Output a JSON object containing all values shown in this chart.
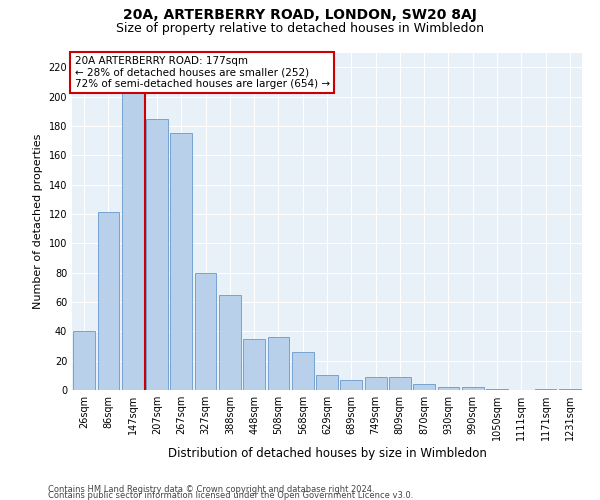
{
  "title": "20A, ARTERBERRY ROAD, LONDON, SW20 8AJ",
  "subtitle": "Size of property relative to detached houses in Wimbledon",
  "xlabel": "Distribution of detached houses by size in Wimbledon",
  "ylabel": "Number of detached properties",
  "categories": [
    "26sqm",
    "86sqm",
    "147sqm",
    "207sqm",
    "267sqm",
    "327sqm",
    "388sqm",
    "448sqm",
    "508sqm",
    "568sqm",
    "629sqm",
    "689sqm",
    "749sqm",
    "809sqm",
    "870sqm",
    "930sqm",
    "990sqm",
    "1050sqm",
    "1111sqm",
    "1171sqm",
    "1231sqm"
  ],
  "values": [
    40,
    121,
    210,
    185,
    175,
    80,
    65,
    35,
    36,
    26,
    10,
    7,
    9,
    9,
    4,
    2,
    2,
    1,
    0,
    1,
    1
  ],
  "bar_color": "#b8d0ea",
  "bar_edge_color": "#6699cc",
  "vline_color": "#cc0000",
  "vline_pos": 2.5,
  "annotation_text": "20A ARTERBERRY ROAD: 177sqm\n← 28% of detached houses are smaller (252)\n72% of semi-detached houses are larger (654) →",
  "annotation_box_color": "#ffffff",
  "annotation_box_edge": "#cc0000",
  "ylim": [
    0,
    230
  ],
  "yticks": [
    0,
    20,
    40,
    60,
    80,
    100,
    120,
    140,
    160,
    180,
    200,
    220
  ],
  "footer_line1": "Contains HM Land Registry data © Crown copyright and database right 2024.",
  "footer_line2": "Contains public sector information licensed under the Open Government Licence v3.0.",
  "bg_color": "#e8f0f8",
  "fig_bg_color": "#ffffff",
  "title_fontsize": 10,
  "subtitle_fontsize": 9,
  "tick_fontsize": 7,
  "ylabel_fontsize": 8,
  "xlabel_fontsize": 8.5,
  "footer_fontsize": 6,
  "annot_fontsize": 7.5
}
